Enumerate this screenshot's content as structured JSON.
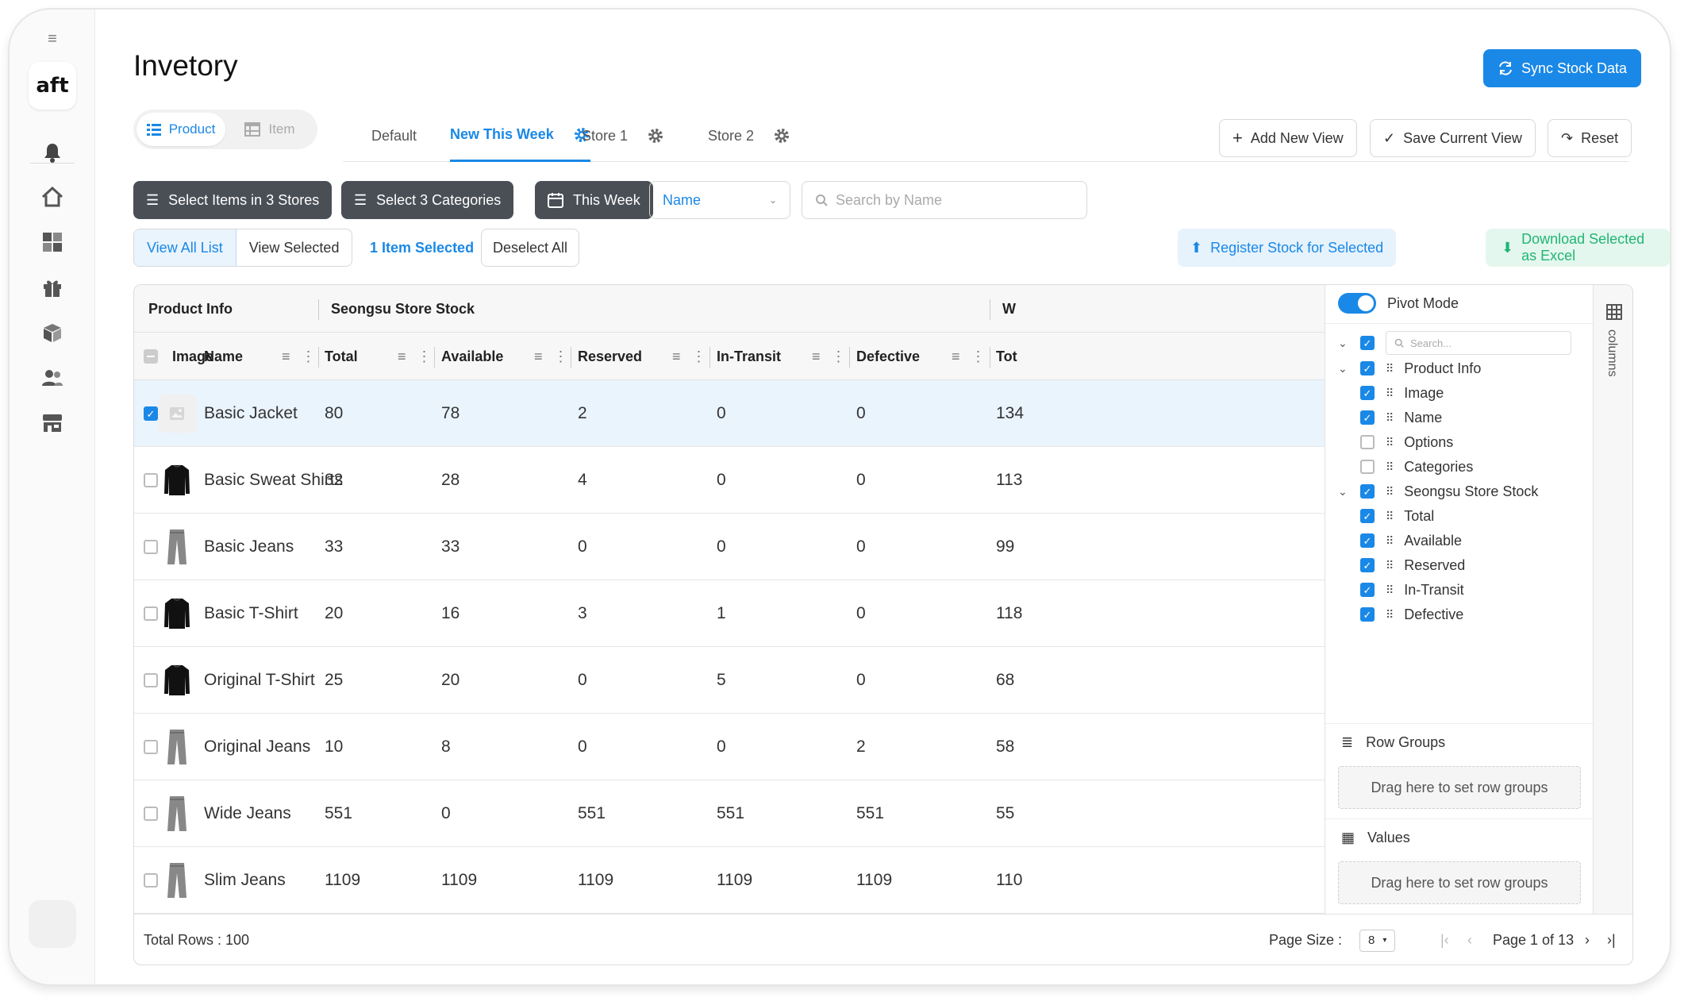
{
  "app": {
    "logo_text": "aft",
    "title": "Invetory"
  },
  "header": {
    "sync_label": "Sync Stock Data"
  },
  "mode_toggle": {
    "product_label": "Product",
    "item_label": "Item"
  },
  "tabs": [
    {
      "label": "Default"
    },
    {
      "label": "New This Week"
    },
    {
      "label": "Store 1"
    },
    {
      "label": "Store 2"
    }
  ],
  "view_tools": {
    "add_label": "Add New View",
    "save_label": "Save Current View",
    "reset_label": "Reset"
  },
  "filters": {
    "stores_label": "Select Items in 3 Stores",
    "categories_label": "Select 3 Categories",
    "week_label": "This Week",
    "sort_value": "Name",
    "search_placeholder": "Search by Name"
  },
  "selection": {
    "view_all_label": "View All List",
    "view_selected_label": "View Selected",
    "count_label": "1 Item Selected",
    "deselect_label": "Deselect All",
    "register_label": "Register Stock for Selected",
    "download_label": "Download Selected as Excel"
  },
  "grid": {
    "group_headers": [
      "Product Info",
      "Seongsu Store Stock",
      "W"
    ],
    "columns": [
      "Image",
      "Name",
      "Total",
      "Available",
      "Reserved",
      "In-Transit",
      "Defective",
      "Tot"
    ],
    "rows": [
      {
        "name": "Basic Jacket",
        "total": "80",
        "available": "78",
        "reserved": "2",
        "in_transit": "0",
        "defective": "0",
        "next": "134",
        "selected": true,
        "image": "placeholder-icon"
      },
      {
        "name": "Basic Sweat Shirts",
        "total": "32",
        "available": "28",
        "reserved": "4",
        "in_transit": "0",
        "defective": "0",
        "next": "113",
        "selected": false,
        "image": "sweatshirt-icon"
      },
      {
        "name": "Basic Jeans",
        "total": "33",
        "available": "33",
        "reserved": "0",
        "in_transit": "0",
        "defective": "0",
        "next": "99",
        "selected": false,
        "image": "jeans-icon"
      },
      {
        "name": "Basic T-Shirt",
        "total": "20",
        "available": "16",
        "reserved": "3",
        "in_transit": "1",
        "defective": "0",
        "next": "118",
        "selected": false,
        "image": "tshirt-icon"
      },
      {
        "name": "Original T-Shirt",
        "total": "25",
        "available": "20",
        "reserved": "0",
        "in_transit": "5",
        "defective": "0",
        "next": "68",
        "selected": false,
        "image": "tshirt-icon"
      },
      {
        "name": "Original Jeans",
        "total": "10",
        "available": "8",
        "reserved": "0",
        "in_transit": "0",
        "defective": "2",
        "next": "58",
        "selected": false,
        "image": "jeans-icon"
      },
      {
        "name": "Wide Jeans",
        "total": "551",
        "available": "0",
        "reserved": "551",
        "in_transit": "551",
        "defective": "551",
        "next": "55",
        "selected": false,
        "image": "jeans-icon"
      },
      {
        "name": "Slim Jeans",
        "total": "1109",
        "available": "1109",
        "reserved": "1109",
        "in_transit": "1109",
        "defective": "1109",
        "next": "110",
        "selected": false,
        "image": "jeans-icon"
      }
    ]
  },
  "panel": {
    "pivot_label": "Pivot Mode",
    "search_placeholder": "Search...",
    "tree": [
      {
        "label": "Product Info",
        "checked": true,
        "group": true
      },
      {
        "label": "Image",
        "checked": true,
        "group": false
      },
      {
        "label": "Name",
        "checked": true,
        "group": false
      },
      {
        "label": "Options",
        "checked": false,
        "group": false
      },
      {
        "label": "Categories",
        "checked": false,
        "group": false
      },
      {
        "label": "Seongsu Store Stock",
        "checked": true,
        "group": true
      },
      {
        "label": "Total",
        "checked": true,
        "group": false
      },
      {
        "label": "Available",
        "checked": true,
        "group": false
      },
      {
        "label": "Reserved",
        "checked": true,
        "group": false
      },
      {
        "label": "In-Transit",
        "checked": true,
        "group": false
      },
      {
        "label": "Defective",
        "checked": true,
        "group": false
      }
    ],
    "row_groups_label": "Row Groups",
    "row_groups_drop": "Drag here to set row groups",
    "values_label": "Values",
    "values_drop": "Drag here to set row groups",
    "side_tab_label": "columns"
  },
  "footer": {
    "total_rows": "Total Rows : 100",
    "page_size_label": "Page Size :",
    "page_size_value": "8",
    "page_info": "Page 1 of 13"
  },
  "colors": {
    "accent": "#1a88e6",
    "filter_dark": "#4a4f56",
    "success": "#22b573",
    "selected_row": "#eaf4fd"
  }
}
